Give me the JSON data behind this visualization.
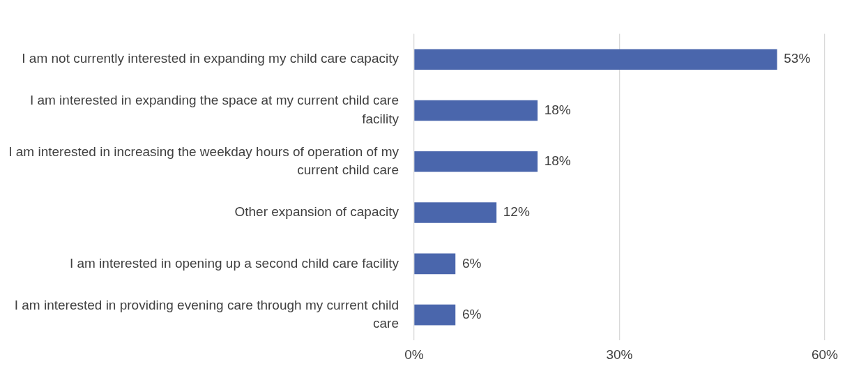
{
  "chart_data": {
    "type": "bar",
    "orientation": "horizontal",
    "categories": [
      "I am not currently interested in expanding my child care capacity",
      "I am interested in expanding the space at my current child care facility",
      "I am interested in increasing the weekday hours of operation of my current child care",
      "Other expansion of capacity",
      "I am interested in opening up a second child care facility",
      "I am interested in providing evening care through my current child care"
    ],
    "values": [
      53,
      18,
      18,
      12,
      6,
      6
    ],
    "value_labels": [
      "53%",
      "18%",
      "18%",
      "12%",
      "6%",
      "6%"
    ],
    "color": "#4a66ac",
    "xlim": [
      0,
      60
    ],
    "xticks": [
      {
        "value": 0,
        "label": "0%"
      },
      {
        "value": 30,
        "label": "30%"
      },
      {
        "value": 60,
        "label": "60%"
      }
    ],
    "grid": "x",
    "legend": false
  }
}
